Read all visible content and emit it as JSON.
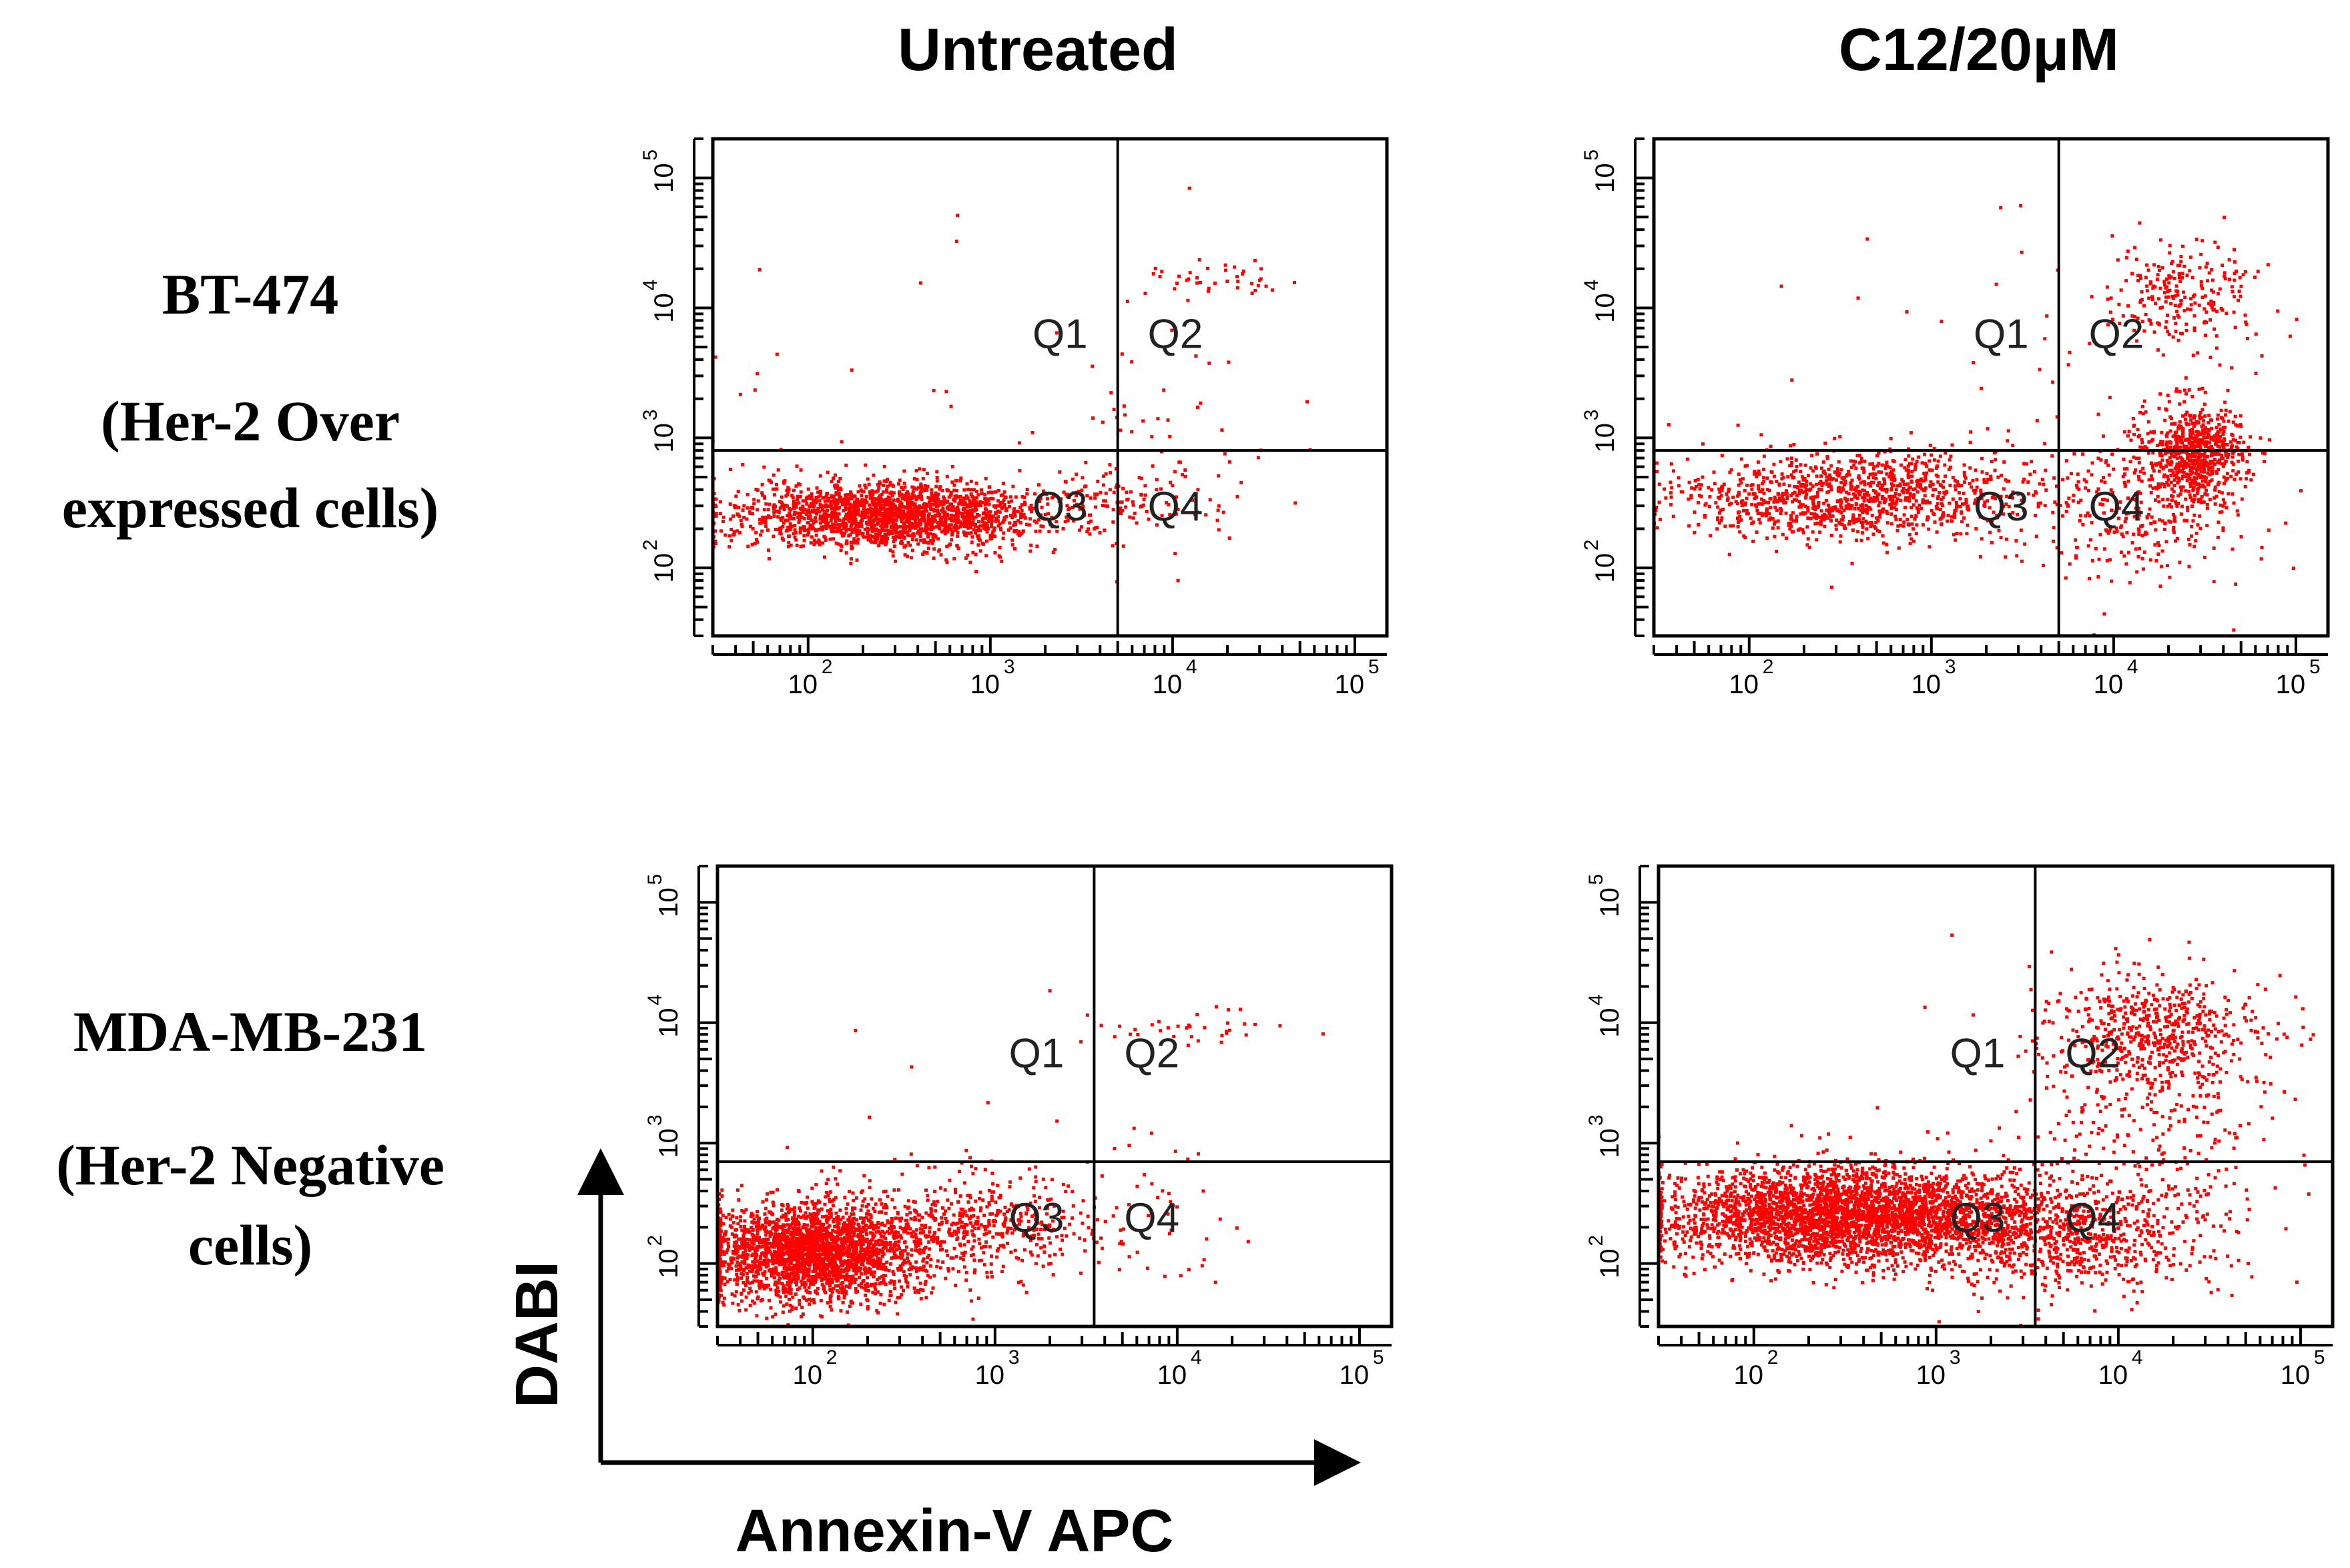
{
  "column_titles": [
    "Untreated",
    "C12/20μM"
  ],
  "row_labels": [
    {
      "line1": "BT-474",
      "line2": "(Her-2 Over",
      "line3": "expressed cells)"
    },
    {
      "line1": "MDA-MB-231",
      "line2": "(Her-2 Negative",
      "line3": "cells)"
    }
  ],
  "axis_labels": {
    "y": "DABI",
    "x": "Annexin-V APC"
  },
  "colors": {
    "dots": "#ff0000",
    "lines": "#000000",
    "background": "#ffffff"
  },
  "chart_data": [
    {
      "type": "scatter",
      "title": "BT-474 Untreated",
      "xlabel": "Annexin-V APC",
      "ylabel": "DABI",
      "xscale": "log",
      "yscale": "log",
      "xlim": [
        30,
        150000
      ],
      "ylim": [
        30,
        200000
      ],
      "x_ticks": [
        "2",
        "3",
        "4",
        "5"
      ],
      "y_ticks": [
        "2",
        "3",
        "4",
        "5"
      ],
      "gate": {
        "x": 5000,
        "y": 800
      },
      "quadrants": [
        "Q1",
        "Q2",
        "Q3",
        "Q4"
      ],
      "clusters": [
        {
          "cx": 2.45,
          "cy": 2.4,
          "sx": 0.42,
          "sy": 0.13,
          "n": 1900
        },
        {
          "cx": 3.6,
          "cy": 2.5,
          "sx": 0.3,
          "sy": 0.14,
          "n": 120
        },
        {
          "cx": 4.25,
          "cy": 4.2,
          "sx": 0.22,
          "sy": 0.08,
          "n": 40
        },
        {
          "cx": 4.0,
          "cy": 3.0,
          "sx": 0.35,
          "sy": 0.45,
          "n": 45
        },
        {
          "cx": 3.0,
          "cy": 3.3,
          "sx": 0.9,
          "sy": 0.9,
          "n": 35
        }
      ]
    },
    {
      "type": "scatter",
      "title": "BT-474 C12/20μM",
      "xlabel": "Annexin-V APC",
      "ylabel": "DABI",
      "xscale": "log",
      "yscale": "log",
      "xlim": [
        30,
        150000
      ],
      "ylim": [
        30,
        200000
      ],
      "x_ticks": [
        "2",
        "3",
        "4",
        "5"
      ],
      "y_ticks": [
        "2",
        "3",
        "4",
        "5"
      ],
      "gate": {
        "x": 5000,
        "y": 800
      },
      "quadrants": [
        "Q1",
        "Q2",
        "Q3",
        "Q4"
      ],
      "clusters": [
        {
          "cx": 2.6,
          "cy": 2.55,
          "sx": 0.5,
          "sy": 0.17,
          "n": 1150
        },
        {
          "cx": 4.45,
          "cy": 2.9,
          "sx": 0.14,
          "sy": 0.17,
          "n": 650
        },
        {
          "cx": 4.2,
          "cy": 2.45,
          "sx": 0.28,
          "sy": 0.3,
          "n": 300
        },
        {
          "cx": 4.4,
          "cy": 4.1,
          "sx": 0.2,
          "sy": 0.2,
          "n": 230
        },
        {
          "cx": 3.8,
          "cy": 3.4,
          "sx": 0.6,
          "sy": 0.7,
          "n": 70
        }
      ]
    },
    {
      "type": "scatter",
      "title": "MDA-MB-231 Untreated",
      "xlabel": "Annexin-V APC",
      "ylabel": "DABI",
      "xscale": "log",
      "yscale": "log",
      "xlim": [
        30,
        150000
      ],
      "ylim": [
        30,
        200000
      ],
      "x_ticks": [
        "2",
        "3",
        "4",
        "5"
      ],
      "y_ticks": [
        "2",
        "3",
        "4",
        "5"
      ],
      "gate": {
        "x": 3500,
        "y": 700
      },
      "quadrants": [
        "Q1",
        "Q2",
        "Q3",
        "Q4"
      ],
      "clusters": [
        {
          "cx": 2.0,
          "cy": 2.1,
          "sx": 0.3,
          "sy": 0.2,
          "n": 2400
        },
        {
          "cx": 2.9,
          "cy": 2.3,
          "sx": 0.35,
          "sy": 0.22,
          "n": 500
        },
        {
          "cx": 4.1,
          "cy": 3.95,
          "sx": 0.3,
          "sy": 0.12,
          "n": 35
        },
        {
          "cx": 3.8,
          "cy": 2.4,
          "sx": 0.3,
          "sy": 0.3,
          "n": 40
        },
        {
          "cx": 3.0,
          "cy": 3.2,
          "sx": 0.8,
          "sy": 0.6,
          "n": 15
        }
      ]
    },
    {
      "type": "scatter",
      "title": "MDA-MB-231 C12/20μM",
      "xlabel": "Annexin-V APC",
      "ylabel": "DABI",
      "xscale": "log",
      "yscale": "log",
      "xlim": [
        30,
        150000
      ],
      "ylim": [
        30,
        200000
      ],
      "x_ticks": [
        "2",
        "3",
        "4",
        "5"
      ],
      "y_ticks": [
        "2",
        "3",
        "4",
        "5"
      ],
      "gate": {
        "x": 3500,
        "y": 700
      },
      "quadrants": [
        "Q1",
        "Q2",
        "Q3",
        "Q4"
      ],
      "clusters": [
        {
          "cx": 2.5,
          "cy": 2.4,
          "sx": 0.5,
          "sy": 0.2,
          "n": 3200
        },
        {
          "cx": 3.7,
          "cy": 2.25,
          "sx": 0.4,
          "sy": 0.25,
          "n": 800
        },
        {
          "cx": 4.2,
          "cy": 3.9,
          "sx": 0.3,
          "sy": 0.25,
          "n": 600
        },
        {
          "cx": 4.2,
          "cy": 3.0,
          "sx": 0.35,
          "sy": 0.4,
          "n": 200
        },
        {
          "cx": 3.5,
          "cy": 3.2,
          "sx": 0.6,
          "sy": 0.6,
          "n": 40
        }
      ]
    }
  ]
}
